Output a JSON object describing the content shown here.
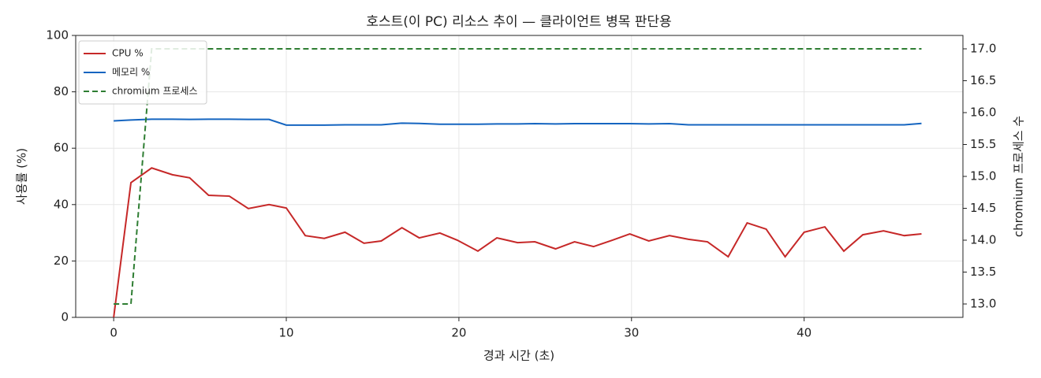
{
  "chart_data": {
    "type": "line",
    "title": "호스트(이 PC) 리소스 추이 — 클라이언트 병목 판단용",
    "x_label": "경과 시간 (초)",
    "y_label": "사용률 (%)",
    "y2_label": "chromium 프로세스 수",
    "x": [
      0,
      1.0,
      2.2,
      3.4,
      4.4,
      5.5,
      6.7,
      7.8,
      9.0,
      10.0,
      11.1,
      12.2,
      13.4,
      14.5,
      15.5,
      16.7,
      17.7,
      18.9,
      19.9,
      21.1,
      22.2,
      23.4,
      24.4,
      25.6,
      26.7,
      27.8,
      28.9,
      29.9,
      31.0,
      32.2,
      33.3,
      34.4,
      35.6,
      36.7,
      37.8,
      38.9,
      40.0,
      41.2,
      42.3,
      43.4,
      44.6,
      45.8,
      46.8
    ],
    "series": [
      {
        "name": "CPU %",
        "color": "#c62828",
        "linestyle": "solid",
        "values": [
          0,
          47.8,
          53,
          50.6,
          49.5,
          43.3,
          43,
          38.6,
          40,
          38.8,
          29,
          28,
          30.2,
          26.3,
          27.1,
          31.8,
          28.2,
          29.9,
          27.4,
          23.5,
          28.2,
          26.5,
          26.8,
          24.3,
          26.8,
          25.1,
          27.4,
          29.6,
          27.1,
          29,
          27.7,
          26.8,
          21.5,
          33.5,
          31.3,
          21.5,
          30.2,
          32.1,
          23.5,
          29.3,
          30.7,
          29,
          29.6
        ]
      },
      {
        "name": "메모리 %",
        "color": "#1565c0",
        "linestyle": "solid",
        "values": [
          69.7,
          70.0,
          70.3,
          70.3,
          70.2,
          70.3,
          70.3,
          70.2,
          70.2,
          68.2,
          68.2,
          68.2,
          68.3,
          68.3,
          68.3,
          68.9,
          68.8,
          68.5,
          68.5,
          68.5,
          68.6,
          68.6,
          68.7,
          68.6,
          68.7,
          68.7,
          68.7,
          68.7,
          68.6,
          68.7,
          68.3,
          68.3,
          68.3,
          68.3,
          68.3,
          68.3,
          68.3,
          68.3,
          68.3,
          68.3,
          68.3,
          68.3,
          68.8
        ]
      },
      {
        "name": "chromium 프로세스",
        "color": "#2e7d32",
        "linestyle": "dashed",
        "axis": "y2",
        "values": [
          13,
          13,
          17,
          17,
          17,
          17,
          17,
          17,
          17,
          17,
          17,
          17,
          17,
          17,
          17,
          17,
          17,
          17,
          17,
          17,
          17,
          17,
          17,
          17,
          17,
          17,
          17,
          17,
          17,
          17,
          17,
          17,
          17,
          17,
          17,
          17,
          17,
          17,
          17,
          17,
          17,
          17,
          17
        ]
      }
    ],
    "xlim": [
      -2.2,
      49.2
    ],
    "xticks": [
      0,
      10,
      20,
      30,
      40
    ],
    "ylim": [
      0,
      100
    ],
    "yticks": [
      0,
      20,
      40,
      60,
      80,
      100
    ],
    "y2lim": [
      12.79,
      17.21
    ],
    "y2ticks": [
      {
        "value": 13,
        "label": "13.0"
      },
      {
        "value": 13.5,
        "label": "13.5"
      },
      {
        "value": 14,
        "label": "14.0"
      },
      {
        "value": 14.5,
        "label": "14.5"
      },
      {
        "value": 15,
        "label": "15.0"
      },
      {
        "value": 15.5,
        "label": "15.5"
      },
      {
        "value": 16,
        "label": "16.0"
      },
      {
        "value": 16.5,
        "label": "16.5"
      },
      {
        "value": 17,
        "label": "17.0"
      }
    ],
    "grid": true,
    "legend_position": "upper-left"
  }
}
